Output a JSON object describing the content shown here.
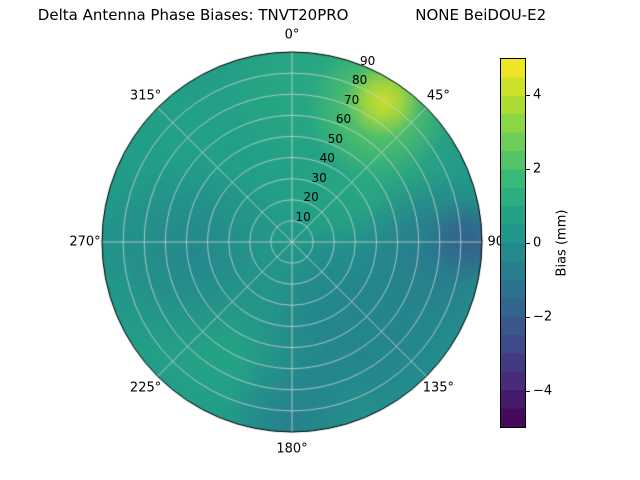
{
  "figure": {
    "background": "#ffffff"
  },
  "chart_data": {
    "type": "heatmap",
    "projection": "polar",
    "title": "Delta Antenna Phase Biases: TNVT20PRO              NONE BeiDOU-E2",
    "title_parts": {
      "left": "Delta Antenna Phase Biases: TNVT20PRO",
      "right": "NONE BeiDOU-E2"
    },
    "theta_labels": [
      "0°",
      "45°",
      "90°",
      "135°",
      "180°",
      "225°",
      "270°",
      "315°"
    ],
    "theta_angles_deg": [
      0,
      45,
      90,
      135,
      180,
      225,
      270,
      315
    ],
    "r_tick_labels": [
      "10",
      "20",
      "30",
      "40",
      "50",
      "60",
      "70",
      "80",
      "90"
    ],
    "r_tick_values": [
      10,
      20,
      30,
      40,
      50,
      60,
      70,
      80,
      90
    ],
    "r_max": 90,
    "r_label_angle_deg": 22.5,
    "grid": true,
    "colorbar": {
      "label": "Bias (mm)",
      "tick_labels": [
        "−4",
        "−2",
        "0",
        "2",
        "4"
      ],
      "tick_values": [
        -4,
        -2,
        0,
        2,
        4
      ],
      "vmin": -5,
      "vmax": 5,
      "colormap": "viridis",
      "level_step_mm": 0.5
    },
    "colormap_stops": [
      [
        0.0,
        "#440154"
      ],
      [
        0.111,
        "#482878"
      ],
      [
        0.222,
        "#3e4989"
      ],
      [
        0.333,
        "#31688e"
      ],
      [
        0.444,
        "#26828e"
      ],
      [
        0.556,
        "#1f9e89"
      ],
      [
        0.667,
        "#35b779"
      ],
      [
        0.778,
        "#6ece58"
      ],
      [
        0.889,
        "#b5de2b"
      ],
      [
        1.0,
        "#fde725"
      ]
    ],
    "field": {
      "background_bias_mm": 0.3,
      "regions": [
        {
          "azimuth_deg": 28,
          "r": 62,
          "bias_mm": 1.5,
          "spread": 30
        },
        {
          "azimuth_deg": 320,
          "r": 65,
          "bias_mm": 0.8,
          "spread": 30
        },
        {
          "azimuth_deg": 350,
          "r": 40,
          "bias_mm": 0.7,
          "spread": 25
        },
        {
          "azimuth_deg": 5,
          "r": 80,
          "bias_mm": 1.0,
          "spread": 22
        },
        {
          "azimuth_deg": 222,
          "r": 55,
          "bias_mm": 0.9,
          "spread": 30
        },
        {
          "azimuth_deg": 33,
          "r": 76,
          "bias_mm": 2.6,
          "spread": 17
        },
        {
          "azimuth_deg": 33,
          "r": 80,
          "bias_mm": 4.3,
          "spread": 9
        },
        {
          "azimuth_deg": 95,
          "r": 70,
          "bias_mm": -1.1,
          "spread": 20
        },
        {
          "azimuth_deg": 90,
          "r": 83,
          "bias_mm": -2.0,
          "spread": 10
        },
        {
          "azimuth_deg": 133,
          "r": 60,
          "bias_mm": -0.6,
          "spread": 28
        },
        {
          "azimuth_deg": 155,
          "r": 45,
          "bias_mm": -0.4,
          "spread": 24
        },
        {
          "azimuth_deg": 180,
          "r": 84,
          "bias_mm": -0.7,
          "spread": 16
        },
        {
          "azimuth_deg": 262,
          "r": 48,
          "bias_mm": -0.4,
          "spread": 24
        }
      ]
    }
  }
}
